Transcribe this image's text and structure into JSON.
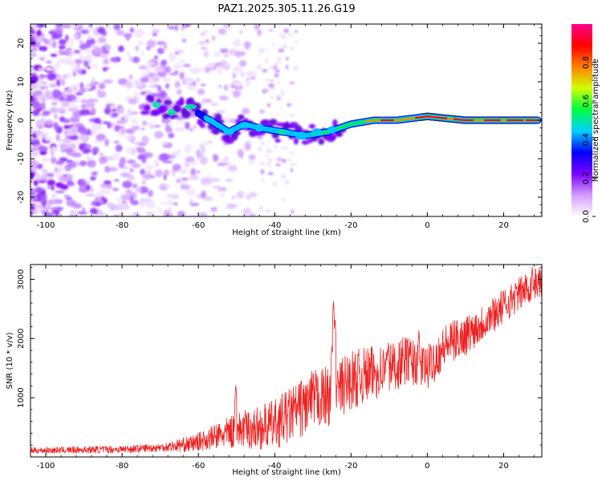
{
  "title": "PAZ1.2025.305.11.26.G19",
  "chart_data": [
    {
      "type": "heatmap",
      "name": "spectrogram",
      "xlabel": "Height of straight line (km)",
      "ylabel": "Frequency (Hz)",
      "xlim": [
        -104,
        30
      ],
      "ylim": [
        -25,
        25
      ],
      "xticks": [
        -100,
        -80,
        -60,
        -40,
        -20,
        0,
        20
      ],
      "yticks": [
        -20,
        -10,
        0,
        10,
        20
      ],
      "xticklabels": [
        "-100",
        "-80",
        "-60",
        "-40",
        "-20",
        "0",
        "20"
      ],
      "yticklabels": [
        "-20",
        "-10",
        "0",
        "10",
        "20"
      ],
      "ridge": [
        {
          "x": -72,
          "f": 4
        },
        {
          "x": -68,
          "f": 3
        },
        {
          "x": -62,
          "f": 3
        },
        {
          "x": -57,
          "f": 0
        },
        {
          "x": -52,
          "f": -3
        },
        {
          "x": -48,
          "f": -1
        },
        {
          "x": -44,
          "f": -2
        },
        {
          "x": -38,
          "f": -3
        },
        {
          "x": -32,
          "f": -4
        },
        {
          "x": -26,
          "f": -3
        },
        {
          "x": -20,
          "f": -1
        },
        {
          "x": -14,
          "f": 0
        },
        {
          "x": -8,
          "f": 0
        },
        {
          "x": 0,
          "f": 1
        },
        {
          "x": 10,
          "f": 0
        },
        {
          "x": 20,
          "f": 0
        },
        {
          "x": 29,
          "f": 0
        }
      ],
      "colorbar": {
        "label": "Normalized spectral amplitude",
        "range": [
          0,
          1
        ],
        "ticks": [
          0,
          0.2,
          0.4,
          0.6,
          0.8
        ],
        "ticklabels": [
          "0.0",
          "0.2",
          "0.4",
          "0.6",
          "0.8"
        ],
        "colors": [
          "#ffffff",
          "#d49cff",
          "#7a00ff",
          "#0000ff",
          "#00d0ff",
          "#00ff40",
          "#d0ff00",
          "#ff8000",
          "#ff0000",
          "#ff0090"
        ]
      }
    },
    {
      "type": "line",
      "name": "snr",
      "xlabel": "Height of straight line (km)",
      "ylabel": "SNR (10 * v/v)",
      "xlim": [
        -104,
        30
      ],
      "ylim": [
        0,
        3250
      ],
      "xticks": [
        -100,
        -80,
        -60,
        -40,
        -20,
        0,
        20
      ],
      "yticks": [
        1000,
        2000,
        3000
      ],
      "xticklabels": [
        "-100",
        "-80",
        "-60",
        "-40",
        "-20",
        "0",
        "20"
      ],
      "yticklabels": [
        "1000",
        "2000",
        "3000"
      ],
      "color": "#ee2222",
      "trend": [
        {
          "x": -104,
          "y": 110
        },
        {
          "x": -90,
          "y": 120
        },
        {
          "x": -80,
          "y": 130
        },
        {
          "x": -70,
          "y": 160
        },
        {
          "x": -62,
          "y": 220
        },
        {
          "x": -55,
          "y": 350
        },
        {
          "x": -50,
          "y": 450
        },
        {
          "x": -45,
          "y": 480
        },
        {
          "x": -40,
          "y": 550
        },
        {
          "x": -35,
          "y": 750
        },
        {
          "x": -30,
          "y": 950
        },
        {
          "x": -25,
          "y": 1050
        },
        {
          "x": -20,
          "y": 1300
        },
        {
          "x": -15,
          "y": 1400
        },
        {
          "x": -10,
          "y": 1500
        },
        {
          "x": -5,
          "y": 1650
        },
        {
          "x": 0,
          "y": 1500
        },
        {
          "x": 5,
          "y": 1900
        },
        {
          "x": 10,
          "y": 2050
        },
        {
          "x": 15,
          "y": 2300
        },
        {
          "x": 20,
          "y": 2550
        },
        {
          "x": 25,
          "y": 2800
        },
        {
          "x": 29,
          "y": 2950
        }
      ],
      "noise": [
        {
          "x": -104,
          "y": 50
        },
        {
          "x": -70,
          "y": 70
        },
        {
          "x": -60,
          "y": 150
        },
        {
          "x": -50,
          "y": 300
        },
        {
          "x": -40,
          "y": 420
        },
        {
          "x": -30,
          "y": 520
        },
        {
          "x": -20,
          "y": 500
        },
        {
          "x": 0,
          "y": 380
        },
        {
          "x": 29,
          "y": 260
        }
      ],
      "spikes": [
        {
          "x": -50.2,
          "y": 1230
        },
        {
          "x": -24.6,
          "y": 2650
        },
        {
          "x": -24.2,
          "y": 2350
        },
        {
          "x": -25.0,
          "y": 1900
        },
        {
          "x": -10.2,
          "y": 1950
        },
        {
          "x": -2.2,
          "y": 2150
        },
        {
          "x": 27.5,
          "y": 3220
        }
      ]
    }
  ]
}
